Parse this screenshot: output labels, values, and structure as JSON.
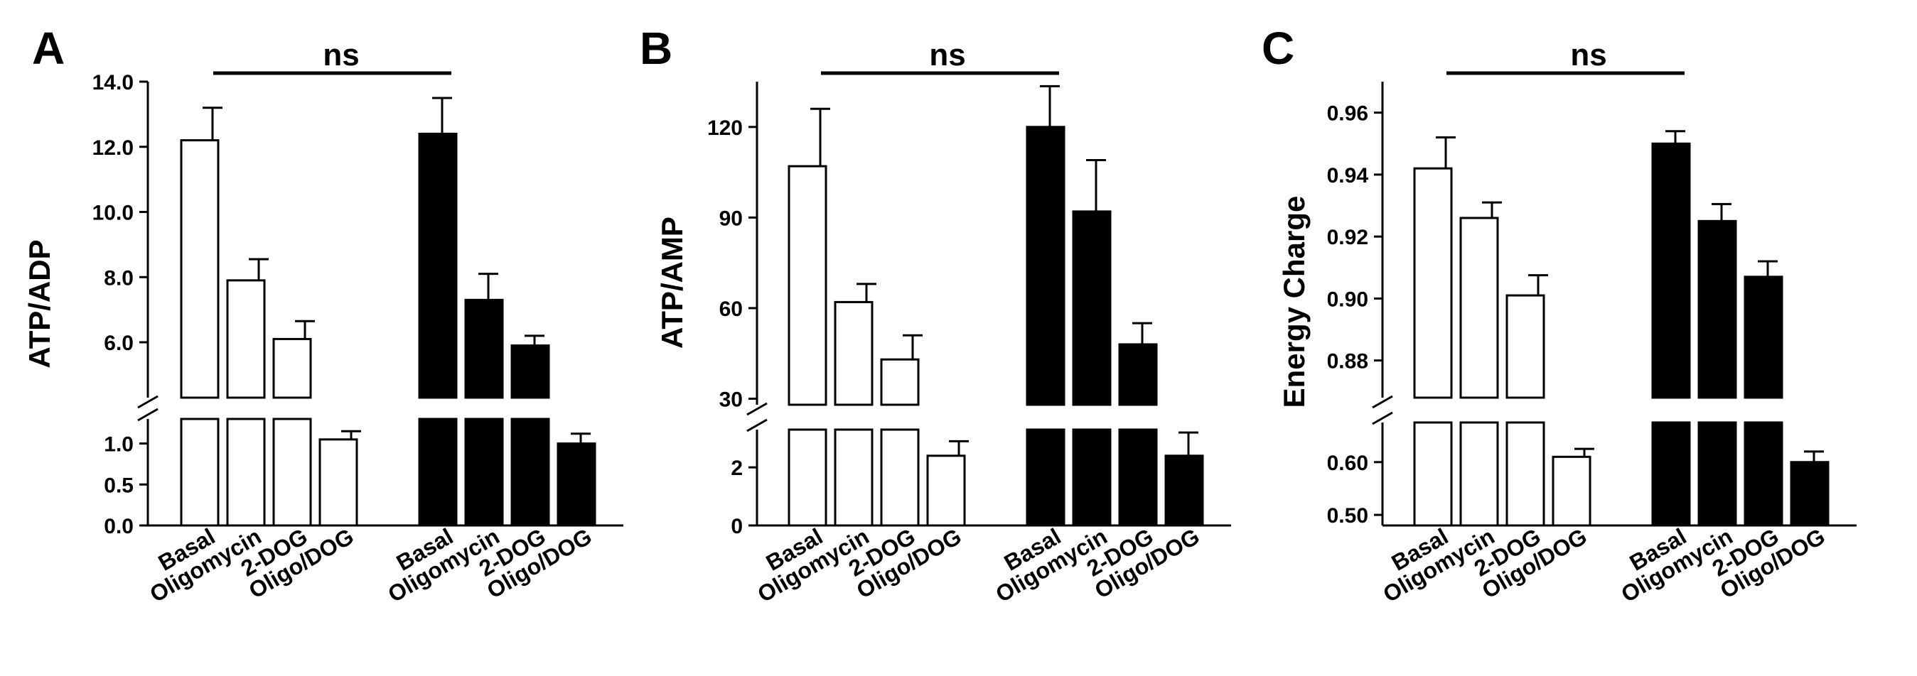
{
  "colors": {
    "control": "#ffffff",
    "treated": "#000000",
    "stroke": "#000000"
  },
  "chart_data": [
    {
      "type": "bar",
      "panel": "A",
      "ylabel": "ATP/ADP",
      "significance": "ns",
      "categories": [
        "Basal",
        "Oligomycin",
        "2-DOG",
        "Oligo/DOG"
      ],
      "series": [
        {
          "name": "open",
          "values": [
            12.2,
            7.9,
            6.1,
            1.05
          ],
          "errors": [
            1.0,
            0.65,
            0.55,
            0.1
          ]
        },
        {
          "name": "filled",
          "values": [
            12.4,
            7.3,
            5.9,
            1.0
          ],
          "errors": [
            1.1,
            0.8,
            0.3,
            0.12
          ]
        }
      ],
      "axis_upper": {
        "range": [
          4.3,
          14.0
        ],
        "ticks": [
          "6.0",
          "8.0",
          "10.0",
          "12.0",
          "14.0"
        ]
      },
      "axis_lower": {
        "range": [
          0,
          1.3
        ],
        "ticks": [
          "0.0",
          "0.5",
          "1.0"
        ]
      }
    },
    {
      "type": "bar",
      "panel": "B",
      "ylabel": "ATP/AMP",
      "significance": "ns",
      "categories": [
        "Basal",
        "Oligomycin",
        "2-DOG",
        "Oligo/DOG"
      ],
      "series": [
        {
          "name": "open",
          "values": [
            107,
            62,
            43,
            2.4
          ],
          "errors": [
            19,
            6,
            8,
            0.5
          ]
        },
        {
          "name": "filled",
          "values": [
            120,
            92,
            48,
            2.4
          ],
          "errors": [
            13.5,
            17,
            7,
            0.8
          ]
        }
      ],
      "axis_upper": {
        "range": [
          28,
          135
        ],
        "ticks": [
          "30",
          "60",
          "90",
          "120"
        ]
      },
      "axis_lower": {
        "range": [
          0,
          3.3
        ],
        "ticks": [
          "0",
          "2"
        ]
      }
    },
    {
      "type": "bar",
      "panel": "C",
      "ylabel": "Energy Charge",
      "significance": "ns",
      "categories": [
        "Basal",
        "Oligomycin",
        "2-DOG",
        "Oligo/DOG"
      ],
      "series": [
        {
          "name": "open",
          "values": [
            0.942,
            0.926,
            0.901,
            0.61
          ],
          "errors": [
            0.01,
            0.005,
            0.0065,
            0.015
          ]
        },
        {
          "name": "filled",
          "values": [
            0.95,
            0.925,
            0.907,
            0.6
          ],
          "errors": [
            0.004,
            0.0055,
            0.005,
            0.02
          ]
        }
      ],
      "axis_upper": {
        "range": [
          0.868,
          0.97
        ],
        "ticks": [
          "0.88",
          "0.90",
          "0.92",
          "0.94",
          "0.96"
        ]
      },
      "axis_lower": {
        "range": [
          0.48,
          0.675
        ],
        "ticks": [
          "0.50",
          "0.60"
        ]
      }
    }
  ]
}
